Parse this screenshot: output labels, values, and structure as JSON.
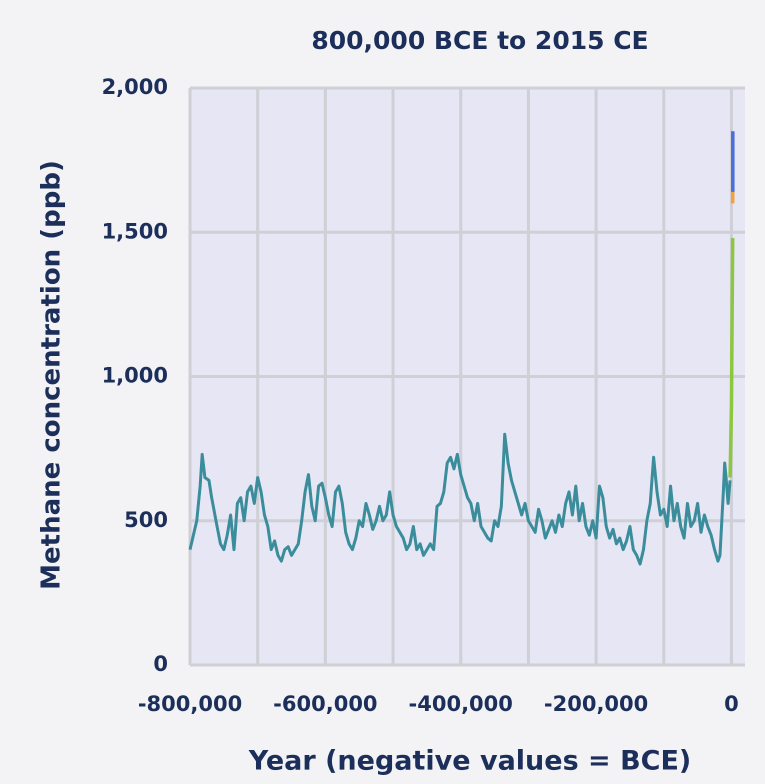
{
  "chart_data": {
    "type": "line",
    "title": "800,000 BCE to 2015 CE",
    "x_label": "Year (negative values = BCE)",
    "y_label": "Methane concentration (ppb)",
    "xlim": [
      -800000,
      20000
    ],
    "ylim": [
      0,
      2000
    ],
    "xticks": [
      {
        "value": -800000,
        "label": "-800,000"
      },
      {
        "value": -600000,
        "label": "-600,000"
      },
      {
        "value": -400000,
        "label": "-400,000"
      },
      {
        "value": -200000,
        "label": "-200,000"
      },
      0
    ],
    "xgrid": [
      -800000,
      -700000,
      -600000,
      -500000,
      -400000,
      -300000,
      -200000,
      -100000,
      0
    ],
    "yticks": [
      0,
      500,
      {
        "value": 1000,
        "label": "1,000"
      },
      {
        "value": 1500,
        "label": "1,500"
      },
      {
        "value": 2000,
        "label": "2,000"
      }
    ],
    "grid": true,
    "series": [
      {
        "color": "#3b8d9c",
        "x": [
          -800000,
          -795000,
          -790000,
          -785000,
          -782000,
          -778000,
          -772000,
          -768000,
          -760000,
          -755000,
          -750000,
          -745000,
          -740000,
          -735000,
          -730000,
          -725000,
          -720000,
          -715000,
          -710000,
          -705000,
          -700000,
          -695000,
          -690000,
          -685000,
          -680000,
          -675000,
          -670000,
          -665000,
          -660000,
          -655000,
          -650000,
          -645000,
          -640000,
          -635000,
          -630000,
          -625000,
          -620000,
          -615000,
          -610000,
          -605000,
          -600000,
          -595000,
          -590000,
          -585000,
          -580000,
          -575000,
          -570000,
          -565000,
          -560000,
          -555000,
          -550000,
          -545000,
          -540000,
          -535000,
          -530000,
          -525000,
          -520000,
          -515000,
          -510000,
          -505000,
          -500000,
          -495000,
          -490000,
          -485000,
          -480000,
          -475000,
          -470000,
          -465000,
          -460000,
          -455000,
          -450000,
          -445000,
          -440000,
          -435000,
          -430000,
          -425000,
          -420000,
          -415000,
          -410000,
          -405000,
          -400000,
          -395000,
          -390000,
          -385000,
          -380000,
          -375000,
          -370000,
          -365000,
          -360000,
          -355000,
          -350000,
          -345000,
          -340000,
          -335000,
          -330000,
          -325000,
          -320000,
          -315000,
          -310000,
          -305000,
          -300000,
          -295000,
          -290000,
          -285000,
          -280000,
          -275000,
          -270000,
          -265000,
          -260000,
          -255000,
          -250000,
          -245000,
          -240000,
          -235000,
          -230000,
          -225000,
          -220000,
          -215000,
          -210000,
          -205000,
          -200000,
          -195000,
          -190000,
          -185000,
          -180000,
          -175000,
          -170000,
          -165000,
          -160000,
          -155000,
          -150000,
          -145000,
          -140000,
          -135000,
          -130000,
          -125000,
          -120000,
          -115000,
          -110000,
          -105000,
          -100000,
          -95000,
          -90000,
          -85000,
          -80000,
          -75000,
          -70000,
          -65000,
          -60000,
          -55000,
          -50000,
          -45000,
          -40000,
          -35000,
          -30000,
          -25000,
          -20000,
          -17000,
          -12000,
          -10000,
          -8000,
          -5000,
          -2000
        ],
        "values": [
          400,
          450,
          500,
          620,
          730,
          650,
          640,
          580,
          480,
          420,
          400,
          450,
          520,
          400,
          560,
          580,
          500,
          600,
          620,
          560,
          650,
          600,
          520,
          480,
          400,
          430,
          380,
          360,
          400,
          410,
          380,
          400,
          420,
          500,
          600,
          660,
          550,
          500,
          620,
          630,
          580,
          520,
          480,
          600,
          620,
          560,
          460,
          420,
          400,
          440,
          500,
          480,
          560,
          520,
          470,
          500,
          550,
          500,
          520,
          600,
          520,
          480,
          460,
          440,
          400,
          420,
          480,
          400,
          420,
          380,
          400,
          420,
          400,
          550,
          560,
          600,
          700,
          720,
          680,
          730,
          660,
          620,
          580,
          560,
          500,
          560,
          480,
          460,
          440,
          430,
          500,
          480,
          550,
          800,
          700,
          640,
          600,
          560,
          520,
          560,
          500,
          480,
          460,
          540,
          500,
          440,
          470,
          500,
          460,
          520,
          480,
          560,
          600,
          520,
          620,
          500,
          560,
          480,
          450,
          500,
          440,
          620,
          580,
          480,
          440,
          470,
          420,
          440,
          400,
          430,
          480,
          400,
          380,
          350,
          400,
          500,
          560,
          720,
          600,
          520,
          540,
          480,
          620,
          500,
          560,
          480,
          440,
          560,
          480,
          500,
          560,
          460,
          520,
          480,
          450,
          400,
          360,
          380,
          600,
          700,
          650,
          560,
          640
        ]
      },
      {
        "color": "#8dc63f",
        "x": [
          -2000,
          0,
          1800
        ],
        "values": [
          650,
          900,
          1480
        ]
      },
      {
        "color": "#f5a03a",
        "x": [
          1800,
          1900
        ],
        "values": [
          1600,
          1650
        ]
      },
      {
        "color": "#4b6fd8",
        "x": [
          1984,
          2015
        ],
        "values": [
          1640,
          1850
        ]
      }
    ]
  }
}
